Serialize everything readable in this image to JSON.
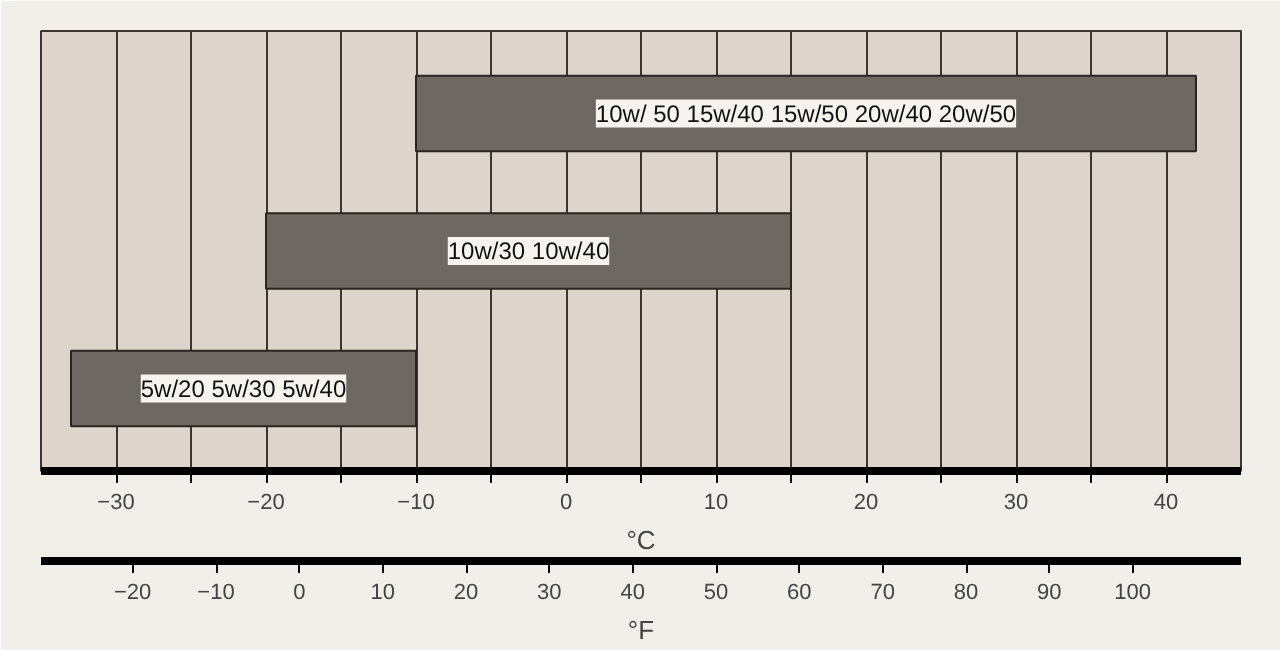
{
  "chart_data": {
    "type": "bar",
    "orientation": "horizontal",
    "xlabel": "°C",
    "x2label": "°F",
    "categories": [
      "10w/ 50 15w/40 15w/50 20w/40 20w/50",
      "10w/30 10w/40",
      "5w/20 5w/30 5w/40"
    ],
    "base": [
      -10,
      -20,
      -33
    ],
    "values": [
      52,
      35,
      23
    ],
    "color": "#6e6862",
    "xlim": [
      -35,
      45
    ],
    "xticks": [
      -30,
      {
        "value": -25,
        "label": null
      },
      -20,
      {
        "value": -15,
        "label": null
      },
      -10,
      {
        "value": -5,
        "label": null
      },
      0,
      {
        "value": 5,
        "label": null
      },
      10,
      {
        "value": 15,
        "label": null
      },
      20,
      {
        "value": 25,
        "label": null
      },
      30,
      {
        "value": 35,
        "label": null
      },
      40
    ],
    "x2lim": [
      -31,
      113
    ],
    "x2ticks": [
      -20,
      -10,
      0,
      10,
      20,
      30,
      40,
      50,
      60,
      70,
      80,
      90,
      100
    ],
    "grid": "x",
    "tick_labels": "x"
  }
}
